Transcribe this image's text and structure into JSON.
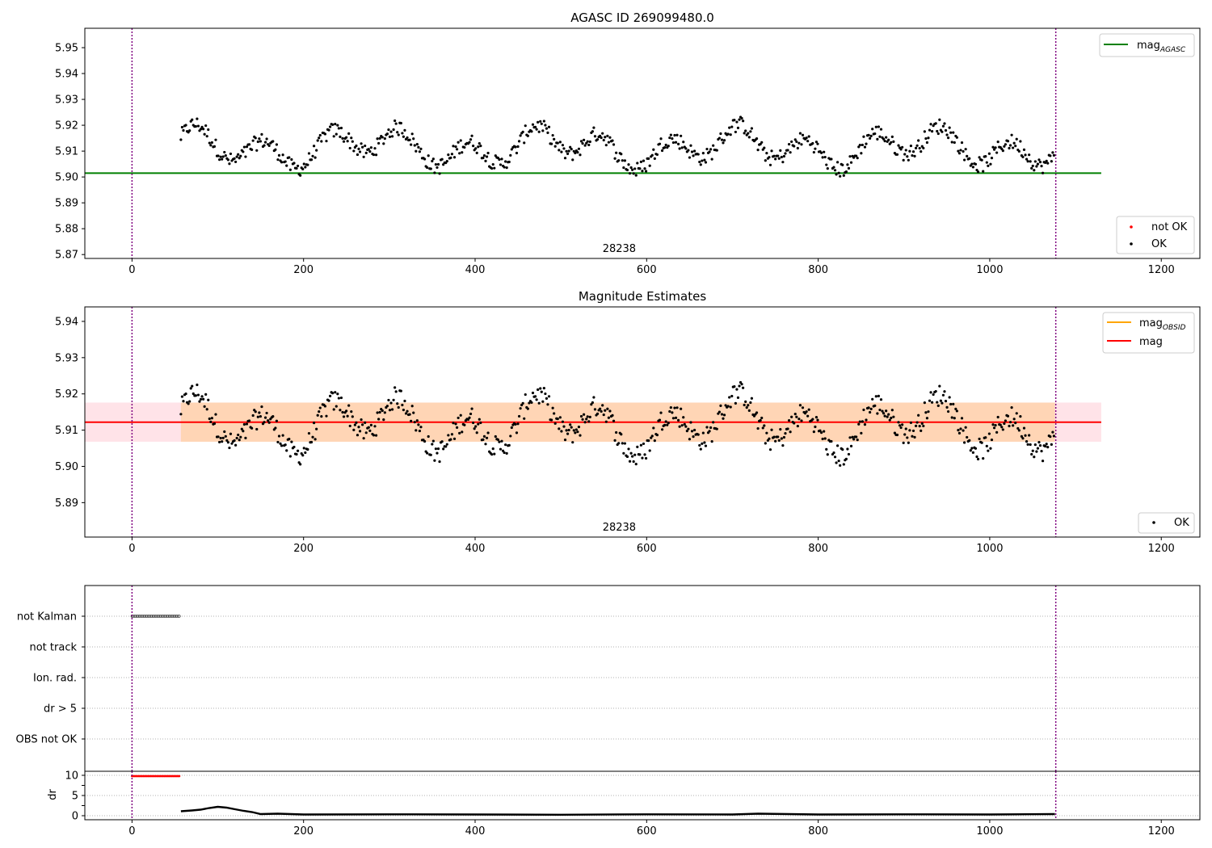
{
  "chart_data": [
    {
      "type": "scatter",
      "title": "AGASC ID 269099480.0",
      "xlim": [
        -55,
        1245
      ],
      "ylim": [
        5.8685,
        5.9575
      ],
      "xticks": [
        "0",
        "200",
        "400",
        "600",
        "800",
        "1000",
        "1200"
      ],
      "xtick_values": [
        0,
        200,
        400,
        600,
        800,
        1000,
        1200
      ],
      "yticks": [
        "5.87",
        "5.88",
        "5.89",
        "5.90",
        "5.91",
        "5.92",
        "5.93",
        "5.94",
        "5.95"
      ],
      "ytick_values": [
        5.87,
        5.88,
        5.89,
        5.9,
        5.91,
        5.92,
        5.93,
        5.94,
        5.95
      ],
      "obsid_label": "28238",
      "obsid_label_x": 536,
      "vlines_x": [
        0,
        1077
      ],
      "hline": {
        "name": "mag",
        "subscript": "AGASC",
        "y": 5.9015,
        "x_range": [
          -55,
          1130
        ],
        "color": "#008000"
      },
      "legend_top": [
        {
          "label": "mag",
          "subscript": "AGASC",
          "color": "#008000"
        }
      ],
      "legend_bottom": [
        {
          "label": "not OK",
          "color": "#ff0000"
        },
        {
          "label": "OK",
          "color": "#000000"
        }
      ],
      "series": [
        {
          "name": "OK",
          "x_range": [
            57,
            1076
          ],
          "y_center": 5.9115,
          "color": "#000000"
        }
      ]
    },
    {
      "type": "scatter",
      "title": "Magnitude Estimates",
      "xlim": [
        -55,
        1245
      ],
      "ylim": [
        5.8805,
        5.944
      ],
      "xticks": [
        "0",
        "200",
        "400",
        "600",
        "800",
        "1000",
        "1200"
      ],
      "xtick_values": [
        0,
        200,
        400,
        600,
        800,
        1000,
        1200
      ],
      "yticks": [
        "5.89",
        "5.90",
        "5.91",
        "5.92",
        "5.93",
        "5.94"
      ],
      "ytick_values": [
        5.89,
        5.9,
        5.91,
        5.92,
        5.93,
        5.94
      ],
      "obsid_label": "28238",
      "obsid_label_x": 536,
      "vlines_x": [
        0,
        1077
      ],
      "mag_line": {
        "y": 5.9122,
        "x_range": [
          -55,
          1130
        ],
        "color": "#ff0000"
      },
      "mag_band": {
        "y_range": [
          5.9068,
          5.9176
        ],
        "x_range": [
          -55,
          1130
        ],
        "color": "#ffc0cb"
      },
      "obsid_band": {
        "y_range": [
          5.9068,
          5.9176
        ],
        "x_range": [
          -55,
          1130
        ],
        "color": "#ffa500"
      },
      "legend_top": [
        {
          "label": "mag",
          "subscript": "OBSID",
          "color": "#ffa500"
        },
        {
          "label": "mag",
          "subscript": "",
          "color": "#ff0000"
        }
      ],
      "legend_bottom": [
        {
          "label": "OK",
          "color": "#000000"
        }
      ],
      "series": [
        {
          "name": "OK",
          "x_range": [
            57,
            1076
          ],
          "y_center": 5.9115,
          "color": "#000000"
        }
      ]
    },
    {
      "type": "scatter",
      "xlim": [
        -55,
        1245
      ],
      "categories": [
        "not Kalman",
        "not track",
        "Ion. rad.",
        "dr > 5",
        "OBS not OK"
      ],
      "flags": [
        {
          "category": "not Kalman",
          "x_range": [
            0,
            56
          ]
        }
      ],
      "vlines_x": [
        0,
        1077
      ]
    },
    {
      "type": "line",
      "ylabel": "dr",
      "xlim": [
        -55,
        1245
      ],
      "ylim": [
        -1,
        11
      ],
      "xticks": [
        "0",
        "200",
        "400",
        "600",
        "800",
        "1000",
        "1200"
      ],
      "xtick_values": [
        0,
        200,
        400,
        600,
        800,
        1000,
        1200
      ],
      "yticks": [
        "0",
        "5",
        "10"
      ],
      "ytick_values": [
        0,
        5,
        10
      ],
      "flagged": {
        "x_range": [
          0,
          56
        ],
        "y": 9.8,
        "color": "#ff0000"
      },
      "vlines_x": [
        0,
        1077
      ],
      "series": [
        {
          "name": "dr",
          "x": [
            57,
            70,
            80,
            90,
            100,
            110,
            120,
            130,
            140,
            150,
            170,
            200,
            300,
            400,
            500,
            600,
            700,
            730,
            800,
            900,
            1000,
            1076
          ],
          "values": [
            1.1,
            1.3,
            1.5,
            1.9,
            2.2,
            2.0,
            1.6,
            1.2,
            0.9,
            0.4,
            0.5,
            0.3,
            0.35,
            0.3,
            0.25,
            0.35,
            0.3,
            0.5,
            0.3,
            0.35,
            0.3,
            0.4
          ],
          "color": "#000000"
        }
      ]
    }
  ]
}
